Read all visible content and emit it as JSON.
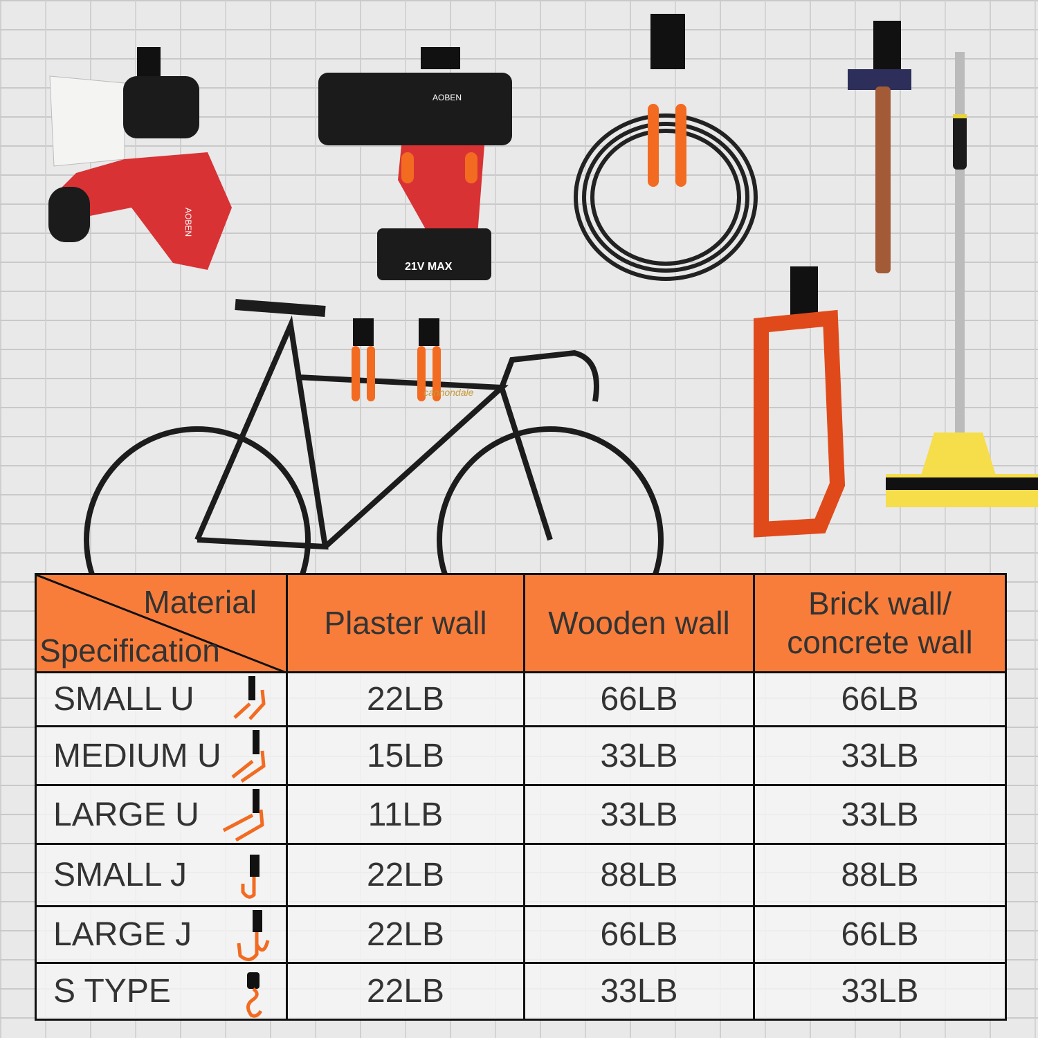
{
  "logos": {
    "sprayer": "AOBEN",
    "drill": "AOBEN",
    "battery": "21V MAX",
    "bike": "cannondale"
  },
  "colors": {
    "header": "#f97d3a",
    "hook_orange": "#f26b21",
    "border": "#111111"
  },
  "table": {
    "corner_top": "Material",
    "corner_bottom": "Specification",
    "columns": [
      "Plaster wall",
      "Wooden wall",
      "Brick wall/ concrete wall"
    ],
    "rows": [
      {
        "spec": "SMALL U",
        "values": [
          "22LB",
          "66LB",
          "66LB"
        ]
      },
      {
        "spec": "MEDIUM U",
        "values": [
          "15LB",
          "33LB",
          "33LB"
        ]
      },
      {
        "spec": "LARGE U",
        "values": [
          "11LB",
          "33LB",
          "33LB"
        ]
      },
      {
        "spec": "SMALL J",
        "values": [
          "22LB",
          "88LB",
          "88LB"
        ]
      },
      {
        "spec": "LARGE J",
        "values": [
          "22LB",
          "66LB",
          "66LB"
        ]
      },
      {
        "spec": "S TYPE",
        "values": [
          "22LB",
          "33LB",
          "33LB"
        ]
      }
    ]
  }
}
